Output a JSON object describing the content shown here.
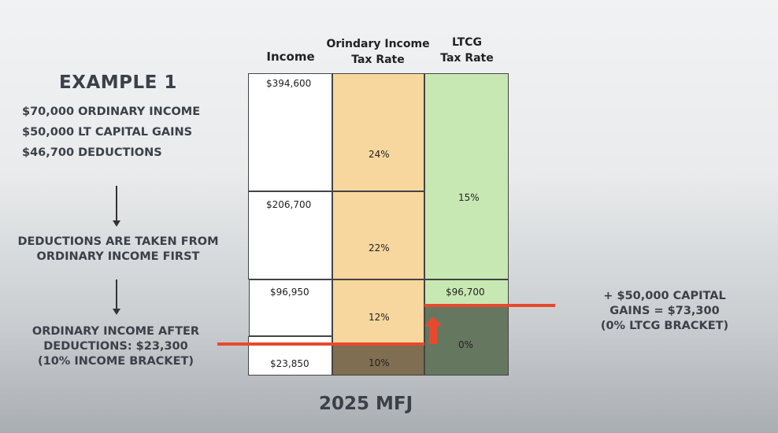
{
  "example": {
    "title": "EXAMPLE 1",
    "lines": [
      "$70,000 ORDINARY INCOME",
      "$50,000 LT CAPITAL GAINS",
      "$46,700 DEDUCTIONS"
    ]
  },
  "notes": {
    "deductions_line1": "DEDUCTIONS ARE TAKEN FROM",
    "deductions_line2": "ORDINARY INCOME FIRST",
    "after_line1": "ORDINARY INCOME AFTER",
    "after_line2": "DEDUCTIONS: $23,300",
    "after_line3": "(10% INCOME BRACKET)",
    "cg_line1": "+ $50,000 CAPITAL",
    "cg_line2": "GAINS = $73,300",
    "cg_line3": "(0% LTCG BRACKET)"
  },
  "table": {
    "headers": {
      "income": "Income",
      "ordinary_line1": "Orindary Income",
      "ordinary_line2": "Tax Rate",
      "ltcg_line1": "LTCG",
      "ltcg_line2": "Tax Rate"
    },
    "income_thresholds": [
      "$394,600",
      "$206,700",
      "$96,950",
      "$23,850"
    ],
    "ordinary_rates": [
      "24%",
      "22%",
      "12%",
      "10%"
    ],
    "ltcg_threshold": "$96,700",
    "ltcg_rates": [
      "15%",
      "0%"
    ]
  },
  "footer": "2025 MFJ",
  "colors": {
    "ordinary_fill": "#f7d79e",
    "ordinary_dark": "#7f6e52",
    "ltcg_fill": "#c8e8b3",
    "ltcg_dark": "#66775f",
    "marker_red": "#e8492d"
  }
}
